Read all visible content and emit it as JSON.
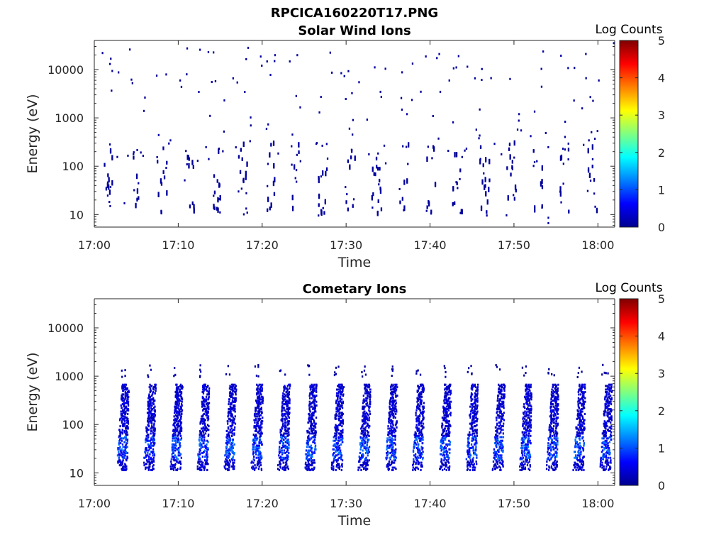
{
  "figure_title": "RPCICA160220T17.PNG",
  "colors": {
    "axis": "#262626",
    "colormap": [
      "#00008f",
      "#0000ff",
      "#0080ff",
      "#00ffff",
      "#80ff80",
      "#ffff00",
      "#ff8000",
      "#ff0000",
      "#800000"
    ]
  },
  "chart_data": [
    {
      "type": "heatmap",
      "title": "Solar Wind Ions",
      "xlabel": "Time",
      "ylabel": "Energy (eV)",
      "x_tick_labels": [
        "17:00",
        "17:10",
        "17:20",
        "17:30",
        "17:40",
        "17:50",
        "18:00"
      ],
      "x_ticks_minutes": [
        0,
        10,
        20,
        30,
        40,
        50,
        60
      ],
      "xlim_minutes": [
        0,
        62
      ],
      "y_scale": "log",
      "y_tick_labels": [
        "10",
        "100",
        "1000",
        "10000"
      ],
      "y_ticks": [
        10,
        100,
        1000,
        10000
      ],
      "ylim": [
        5.5,
        40000
      ],
      "colorbar": {
        "title": "Log Counts",
        "tick_labels": [
          "0",
          "1",
          "2",
          "3",
          "4",
          "5"
        ],
        "range": [
          0,
          5
        ]
      },
      "pattern": {
        "description": "sparse isolated counts, mostly log counts near 0-0.3",
        "sweep_period_min": 3.2,
        "first_sweep_min": 1.6,
        "dense_energy_range_eV": [
          10,
          300
        ],
        "sparse_energy_range_eV": [
          100,
          30000
        ],
        "typical_log_counts": 0.15
      },
      "notable_points": [
        {
          "t": 12.5,
          "e": 27000
        },
        {
          "t": 41.0,
          "e": 22000
        },
        {
          "t": 54.0,
          "e": 7
        },
        {
          "t": 54.0,
          "e": 9
        },
        {
          "t": 3.5,
          "e": 18
        },
        {
          "t": 18.0,
          "e": 14
        },
        {
          "t": 61.8,
          "e": 37000
        }
      ]
    },
    {
      "type": "heatmap",
      "title": "Cometary Ions",
      "xlabel": "Time",
      "ylabel": "Energy (eV)",
      "x_tick_labels": [
        "17:00",
        "17:10",
        "17:20",
        "17:30",
        "17:40",
        "17:50",
        "18:00"
      ],
      "x_ticks_minutes": [
        0,
        10,
        20,
        30,
        40,
        50,
        60
      ],
      "xlim_minutes": [
        0,
        62
      ],
      "y_scale": "log",
      "y_tick_labels": [
        "10",
        "100",
        "1000",
        "10000"
      ],
      "y_ticks": [
        10,
        100,
        1000,
        10000
      ],
      "ylim": [
        5.5,
        40000
      ],
      "colorbar": {
        "title": "Log Counts",
        "tick_labels": [
          "0",
          "1",
          "2",
          "3",
          "4",
          "5"
        ],
        "range": [
          0,
          5
        ]
      },
      "pattern": {
        "description": "periodic dense vertical bands every ~3.2 min, log counts mostly 0.2-1.3",
        "sweep_period_min": 3.2,
        "first_sweep_min": 3.2,
        "sweep_count": 19,
        "band_energy_range_eV": [
          12,
          700
        ],
        "sparse_top_energy_range_eV": [
          1000,
          1800
        ],
        "peak_energy_eV": [
          20,
          60
        ],
        "peak_log_counts": 1.3,
        "typical_log_counts": 0.4
      }
    }
  ]
}
